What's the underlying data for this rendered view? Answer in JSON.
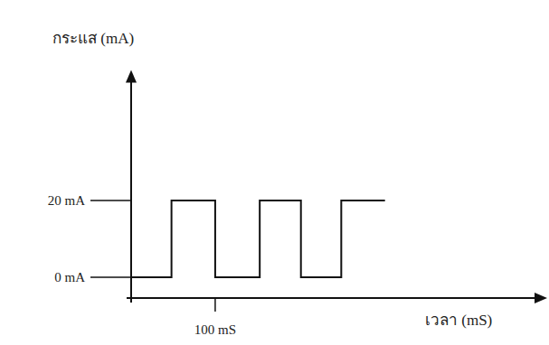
{
  "chart_data": {
    "type": "line",
    "x_label": "เวลา (mS)",
    "y_label": "กระแส (mA)",
    "x": [
      0,
      48,
      48,
      100,
      100,
      153,
      153,
      202,
      202,
      250,
      250,
      302
    ],
    "values": [
      0,
      0,
      20,
      20,
      0,
      0,
      20,
      20,
      0,
      0,
      20,
      20
    ],
    "color": "#111111",
    "line_style": "solid",
    "xlim": [
      0,
      495
    ],
    "ylim": [
      -5.4,
      54
    ],
    "xticks": [
      {
        "value": 100,
        "label": "100 mS"
      }
    ],
    "yticks": [
      {
        "value": 0,
        "label": "0 mA"
      },
      {
        "value": 20,
        "label": "20 mA"
      }
    ],
    "grid": false
  }
}
